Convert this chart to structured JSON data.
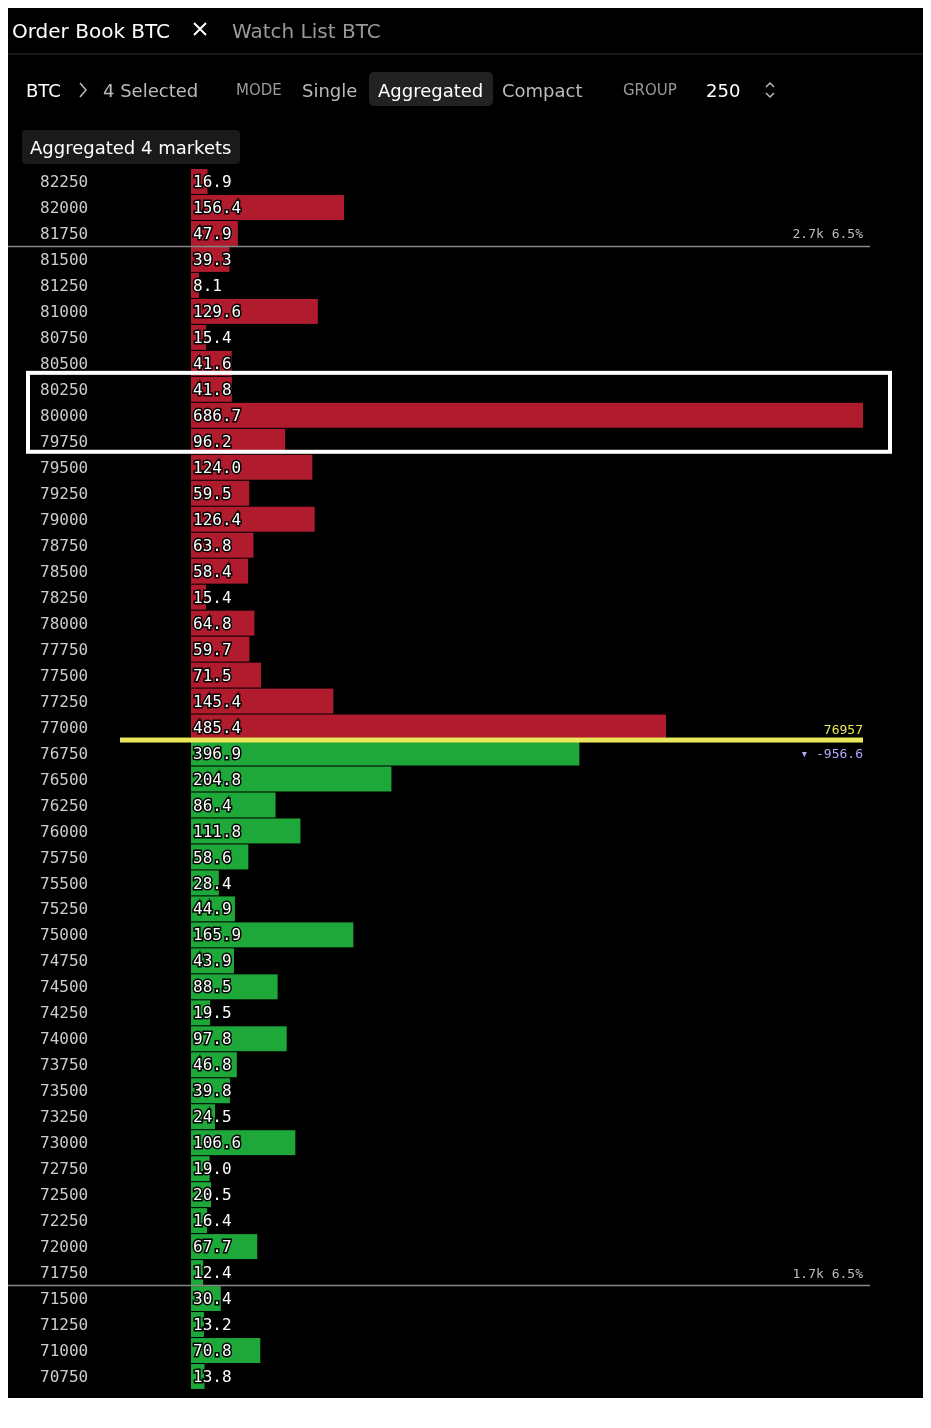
{
  "chart_data": {
    "type": "bar",
    "orientation": "horizontal",
    "title": "Order Book BTC",
    "annotations": [
      "Watch List BTC",
      "BTC",
      "4 Selected",
      "MODE",
      "Single",
      "Aggregated",
      "Compact",
      "GROUP",
      "250",
      "Aggregated 4 markets",
      "▾ -956.6"
    ],
    "bands": [
      {
        "axis": "y",
        "from": "77000",
        "to": "76750",
        "label": "76957",
        "color": "#e8e85a"
      }
    ],
    "categories": [
      "82250",
      "82000",
      "81750",
      "81500",
      "81250",
      "81000",
      "80750",
      "80500",
      "80250",
      "80000",
      "79750",
      "79500",
      "79250",
      "79000",
      "78750",
      "78500",
      "78250",
      "78000",
      "77750",
      "77500",
      "77250",
      "77000",
      "76750",
      "76500",
      "76250",
      "76000",
      "75750",
      "75500",
      "75250",
      "75000",
      "74750",
      "74500",
      "74250",
      "74000",
      "73750",
      "73500",
      "73250",
      "73000",
      "72750",
      "72500",
      "72250",
      "72000",
      "71750",
      "71500",
      "71250",
      "71000",
      "70750"
    ],
    "values": [
      16.9,
      156.4,
      47.9,
      39.3,
      8.1,
      129.6,
      15.4,
      41.6,
      41.8,
      686.7,
      96.2,
      124.0,
      59.5,
      126.4,
      63.8,
      58.4,
      15.4,
      64.8,
      59.7,
      71.5,
      145.4,
      485.4,
      396.9,
      204.8,
      86.4,
      111.8,
      58.6,
      28.4,
      44.9,
      165.9,
      43.9,
      88.5,
      19.5,
      97.8,
      46.8,
      39.8,
      24.5,
      106.6,
      19.0,
      20.5,
      16.4,
      67.7,
      12.4,
      30.4,
      13.2,
      70.8,
      13.8
    ],
    "value_labels": [
      "16.9",
      "156.4",
      "47.9",
      "39.3",
      "8.1",
      "129.6",
      "15.4",
      "41.6",
      "41.8",
      "686.7",
      "96.2",
      "124.0",
      "59.5",
      "126.4",
      "63.8",
      "58.4",
      "15.4",
      "64.8",
      "59.7",
      "71.5",
      "145.4",
      "485.4",
      "396.9",
      "204.8",
      "86.4",
      "111.8",
      "58.6",
      "28.4",
      "44.9",
      "165.9",
      "43.9",
      "88.5",
      "19.5",
      "97.8",
      "46.8",
      "39.8",
      "24.5",
      "106.6",
      "19.0",
      "20.5",
      "16.4",
      "67.7",
      "12.4",
      "30.4",
      "13.2",
      "70.8",
      "13.8"
    ],
    "colors": [
      "#b01c2e",
      "#b01c2e",
      "#b01c2e",
      "#b01c2e",
      "#b01c2e",
      "#b01c2e",
      "#b01c2e",
      "#b01c2e",
      "#b01c2e",
      "#b01c2e",
      "#b01c2e",
      "#b01c2e",
      "#b01c2e",
      "#b01c2e",
      "#b01c2e",
      "#b01c2e",
      "#b01c2e",
      "#b01c2e",
      "#b01c2e",
      "#b01c2e",
      "#b01c2e",
      "#b01c2e",
      "#1fa83a",
      "#1fa83a",
      "#1fa83a",
      "#1fa83a",
      "#1fa83a",
      "#1fa83a",
      "#1fa83a",
      "#1fa83a",
      "#1fa83a",
      "#1fa83a",
      "#1fa83a",
      "#1fa83a",
      "#1fa83a",
      "#1fa83a",
      "#1fa83a",
      "#1fa83a",
      "#1fa83a",
      "#1fa83a",
      "#1fa83a",
      "#1fa83a",
      "#1fa83a",
      "#1fa83a",
      "#1fa83a",
      "#1fa83a",
      "#1fa83a"
    ],
    "ref_lines": [
      {
        "axis": "y",
        "value": "81750",
        "label": "2.7k  6.5%",
        "color": "#888888"
      },
      {
        "axis": "y",
        "value": "71750",
        "label": "1.7k  6.5%",
        "color": "#888888"
      }
    ],
    "tick_labels": "y"
  }
}
